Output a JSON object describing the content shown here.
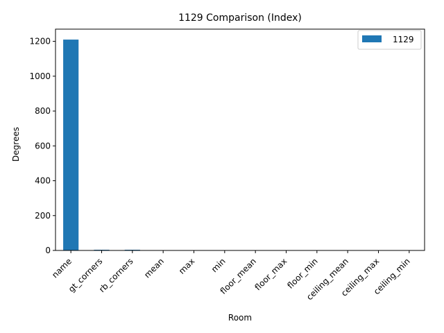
{
  "chart_data": {
    "type": "bar",
    "title": "1129 Comparison (Index)",
    "xlabel": "Room",
    "ylabel": "Degrees",
    "categories": [
      "name",
      "gt_corners",
      "rb_corners",
      "mean",
      "max",
      "min",
      "floor_mean",
      "floor_max",
      "floor_min",
      "ceiling_mean",
      "ceiling_max",
      "ceiling_min"
    ],
    "series": [
      {
        "name": "1129",
        "values": [
          1210,
          4,
          4,
          0,
          0,
          0,
          0,
          0,
          0,
          0,
          0,
          0
        ],
        "color": "#1f77b4"
      }
    ],
    "ylim": [
      0,
      1270
    ],
    "yticks": [
      0,
      200,
      400,
      600,
      800,
      1000,
      1200
    ],
    "grid": false,
    "legend_position": "top-right"
  }
}
